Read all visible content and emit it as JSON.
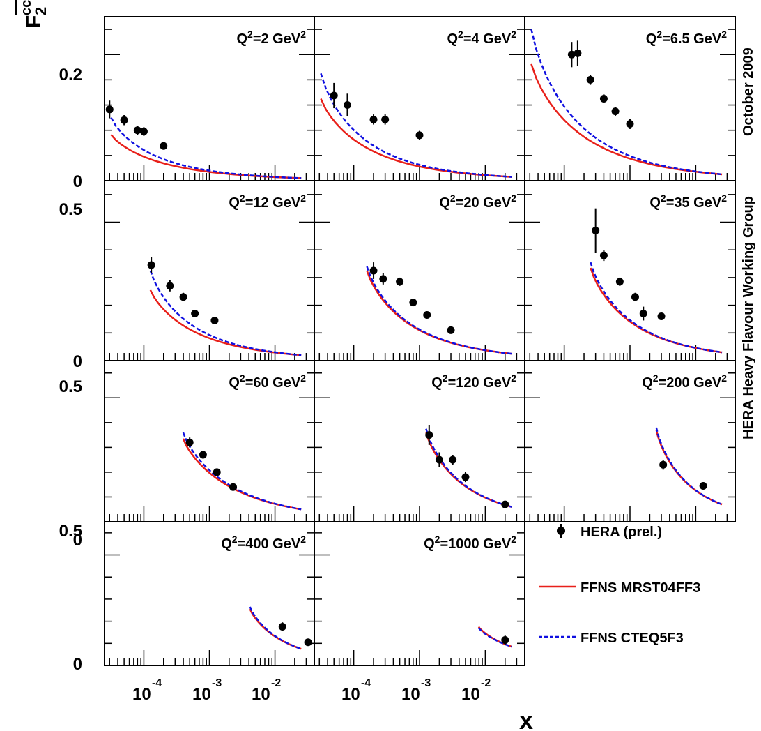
{
  "figure": {
    "y_title_main": "F",
    "y_title_sub": "2",
    "y_title_sup": "cc",
    "x_title": "x",
    "side_caption": "HERA Heavy Flavour Working Group",
    "side_date": "October 2009",
    "x_tick_base": "10",
    "x_tick_exps": [
      "-4",
      "-3",
      "-2"
    ],
    "y_labels": {
      "row0": [
        "0",
        "0.2"
      ],
      "row_other": [
        "0",
        "0.5"
      ]
    }
  },
  "legend": {
    "data_label": "HERA (prel.)",
    "mrst_label": "FFNS MRST04FF3",
    "cteq_label": "FFNS CTEQ5F3",
    "data_color": "#000000",
    "mrst_color": "#e8201a",
    "cteq_color": "#1010e0"
  },
  "chart_data": [
    {
      "type": "scatter",
      "title": "Q²=2 GeV²",
      "q2_label": "2",
      "ylim": [
        0,
        0.26
      ],
      "xlim_log10": [
        -4.6,
        -1.4
      ],
      "x": [
        3e-05,
        5e-05,
        8e-05,
        0.0001,
        0.0002
      ],
      "y": [
        0.113,
        0.096,
        0.08,
        0.078,
        0.055
      ],
      "yerr": [
        0.014,
        0.008,
        0.007,
        0.007,
        0.005
      ],
      "mrst": {
        "x_log10": [
          -4.5,
          -1.6
        ],
        "y": [
          0.073,
          0.004
        ]
      },
      "cteq": {
        "x_log10": [
          -4.5,
          -1.6
        ],
        "y": [
          0.1,
          0.004
        ]
      }
    },
    {
      "type": "scatter",
      "title": "Q²=4 GeV²",
      "q2_label": "4",
      "ylim": [
        0,
        0.26
      ],
      "xlim_log10": [
        -4.6,
        -1.4
      ],
      "x": [
        5e-05,
        8e-05,
        0.0002,
        0.0003,
        0.001
      ],
      "y": [
        0.135,
        0.12,
        0.097,
        0.097,
        0.072
      ],
      "yerr": [
        0.02,
        0.018,
        0.008,
        0.008,
        0.007
      ],
      "mrst": {
        "x_log10": [
          -4.5,
          -1.6
        ],
        "y": [
          0.13,
          0.006
        ]
      },
      "cteq": {
        "x_log10": [
          -4.5,
          -1.6
        ],
        "y": [
          0.17,
          0.006
        ]
      }
    },
    {
      "type": "scatter",
      "title": "Q²=6.5 GeV²",
      "q2_label": "6.5",
      "ylim": [
        0,
        0.26
      ],
      "xlim_log10": [
        -4.6,
        -1.4
      ],
      "x": [
        0.00013,
        0.00016,
        0.00025,
        0.0004,
        0.0006,
        0.001
      ],
      "y": [
        0.2,
        0.202,
        0.16,
        0.13,
        0.11,
        0.09
      ],
      "yerr": [
        0.02,
        0.02,
        0.008,
        0.007,
        0.007,
        0.008
      ],
      "mrst": {
        "x_log10": [
          -4.5,
          -1.6
        ],
        "y": [
          0.185,
          0.01
        ]
      },
      "cteq": {
        "x_log10": [
          -4.5,
          -1.6
        ],
        "y": [
          0.24,
          0.01
        ]
      }
    },
    {
      "type": "scatter",
      "title": "Q²=12 GeV²",
      "q2_label": "12",
      "ylim": [
        0,
        0.65
      ],
      "xlim_log10": [
        -4.6,
        -1.4
      ],
      "x": [
        0.00013,
        0.00025,
        0.0004,
        0.0006,
        0.0012
      ],
      "y": [
        0.345,
        0.27,
        0.23,
        0.17,
        0.145
      ],
      "yerr": [
        0.03,
        0.02,
        0.015,
        0.01,
        0.01
      ],
      "mrst": {
        "x_log10": [
          -3.9,
          -1.6
        ],
        "y": [
          0.255,
          0.02
        ]
      },
      "cteq": {
        "x_log10": [
          -3.9,
          -1.6
        ],
        "y": [
          0.325,
          0.02
        ]
      }
    },
    {
      "type": "scatter",
      "title": "Q²=20 GeV²",
      "q2_label": "20",
      "ylim": [
        0,
        0.65
      ],
      "xlim_log10": [
        -4.6,
        -1.4
      ],
      "x": [
        0.0002,
        0.00028,
        0.0005,
        0.0008,
        0.0013,
        0.003
      ],
      "y": [
        0.325,
        0.295,
        0.285,
        0.21,
        0.165,
        0.11
      ],
      "yerr": [
        0.03,
        0.02,
        0.015,
        0.01,
        0.01,
        0.008
      ],
      "mrst": {
        "x_log10": [
          -3.8,
          -1.6
        ],
        "y": [
          0.325,
          0.025
        ]
      },
      "cteq": {
        "x_log10": [
          -3.8,
          -1.6
        ],
        "y": [
          0.34,
          0.025
        ]
      }
    },
    {
      "type": "scatter",
      "title": "Q²=35 GeV²",
      "q2_label": "35",
      "ylim": [
        0,
        0.65
      ],
      "xlim_log10": [
        -4.6,
        -1.4
      ],
      "x": [
        0.0003,
        0.0004,
        0.0007,
        0.0012,
        0.0016,
        0.003
      ],
      "y": [
        0.47,
        0.38,
        0.285,
        0.23,
        0.17,
        0.16
      ],
      "yerr": [
        0.08,
        0.02,
        0.015,
        0.015,
        0.025,
        0.01
      ],
      "mrst": {
        "x_log10": [
          -3.6,
          -1.6
        ],
        "y": [
          0.335,
          0.03
        ]
      },
      "cteq": {
        "x_log10": [
          -3.6,
          -1.6
        ],
        "y": [
          0.355,
          0.03
        ]
      }
    },
    {
      "type": "scatter",
      "title": "Q²=60 GeV²",
      "q2_label": "60",
      "ylim": [
        0,
        0.65
      ],
      "xlim_log10": [
        -4.6,
        -1.4
      ],
      "x": [
        0.0005,
        0.0008,
        0.0013,
        0.0023
      ],
      "y": [
        0.32,
        0.27,
        0.2,
        0.14
      ],
      "yerr": [
        0.02,
        0.015,
        0.01,
        0.008
      ],
      "mrst": {
        "x_log10": [
          -3.4,
          -1.6
        ],
        "y": [
          0.335,
          0.05
        ]
      },
      "cteq": {
        "x_log10": [
          -3.4,
          -1.6
        ],
        "y": [
          0.36,
          0.05
        ]
      }
    },
    {
      "type": "scatter",
      "title": "Q²=120 GeV²",
      "q2_label": "120",
      "ylim": [
        0,
        0.65
      ],
      "xlim_log10": [
        -4.6,
        -1.4
      ],
      "x": [
        0.0014,
        0.002,
        0.0032,
        0.005,
        0.02
      ],
      "y": [
        0.35,
        0.25,
        0.25,
        0.18,
        0.07
      ],
      "yerr": [
        0.04,
        0.03,
        0.02,
        0.02,
        0.01
      ],
      "mrst": {
        "x_log10": [
          -2.9,
          -1.6
        ],
        "y": [
          0.36,
          0.06
        ]
      },
      "cteq": {
        "x_log10": [
          -2.9,
          -1.6
        ],
        "y": [
          0.375,
          0.06
        ]
      }
    },
    {
      "type": "scatter",
      "title": "Q²=200 GeV²",
      "q2_label": "200",
      "ylim": [
        0,
        0.65
      ],
      "xlim_log10": [
        -4.6,
        -1.4
      ],
      "x": [
        0.0032,
        0.013
      ],
      "y": [
        0.23,
        0.145
      ],
      "yerr": [
        0.02,
        0.012
      ],
      "mrst": {
        "x_log10": [
          -2.6,
          -1.6
        ],
        "y": [
          0.37,
          0.07
        ]
      },
      "cteq": {
        "x_log10": [
          -2.6,
          -1.6
        ],
        "y": [
          0.38,
          0.07
        ]
      }
    },
    {
      "type": "scatter",
      "title": "Q²=400 GeV²",
      "q2_label": "400",
      "ylim": [
        0,
        0.65
      ],
      "xlim_log10": [
        -4.6,
        -1.4
      ],
      "x": [
        0.013,
        0.032
      ],
      "y": [
        0.175,
        0.105
      ],
      "yerr": [
        0.02,
        0.01
      ],
      "mrst": {
        "x_log10": [
          -2.38,
          -1.6
        ],
        "y": [
          0.255,
          0.075
        ]
      },
      "cteq": {
        "x_log10": [
          -2.38,
          -1.6
        ],
        "y": [
          0.265,
          0.075
        ]
      }
    },
    {
      "type": "scatter",
      "title": "Q²=1000 GeV²",
      "q2_label": "1000",
      "ylim": [
        0,
        0.65
      ],
      "xlim_log10": [
        -4.6,
        -1.4
      ],
      "x": [
        0.02
      ],
      "y": [
        0.115
      ],
      "yerr": [
        0.02
      ],
      "mrst": {
        "x_log10": [
          -2.1,
          -1.6
        ],
        "y": [
          0.175,
          0.085
        ]
      },
      "cteq": {
        "x_log10": [
          -2.1,
          -1.6
        ],
        "y": [
          0.17,
          0.085
        ]
      }
    }
  ]
}
